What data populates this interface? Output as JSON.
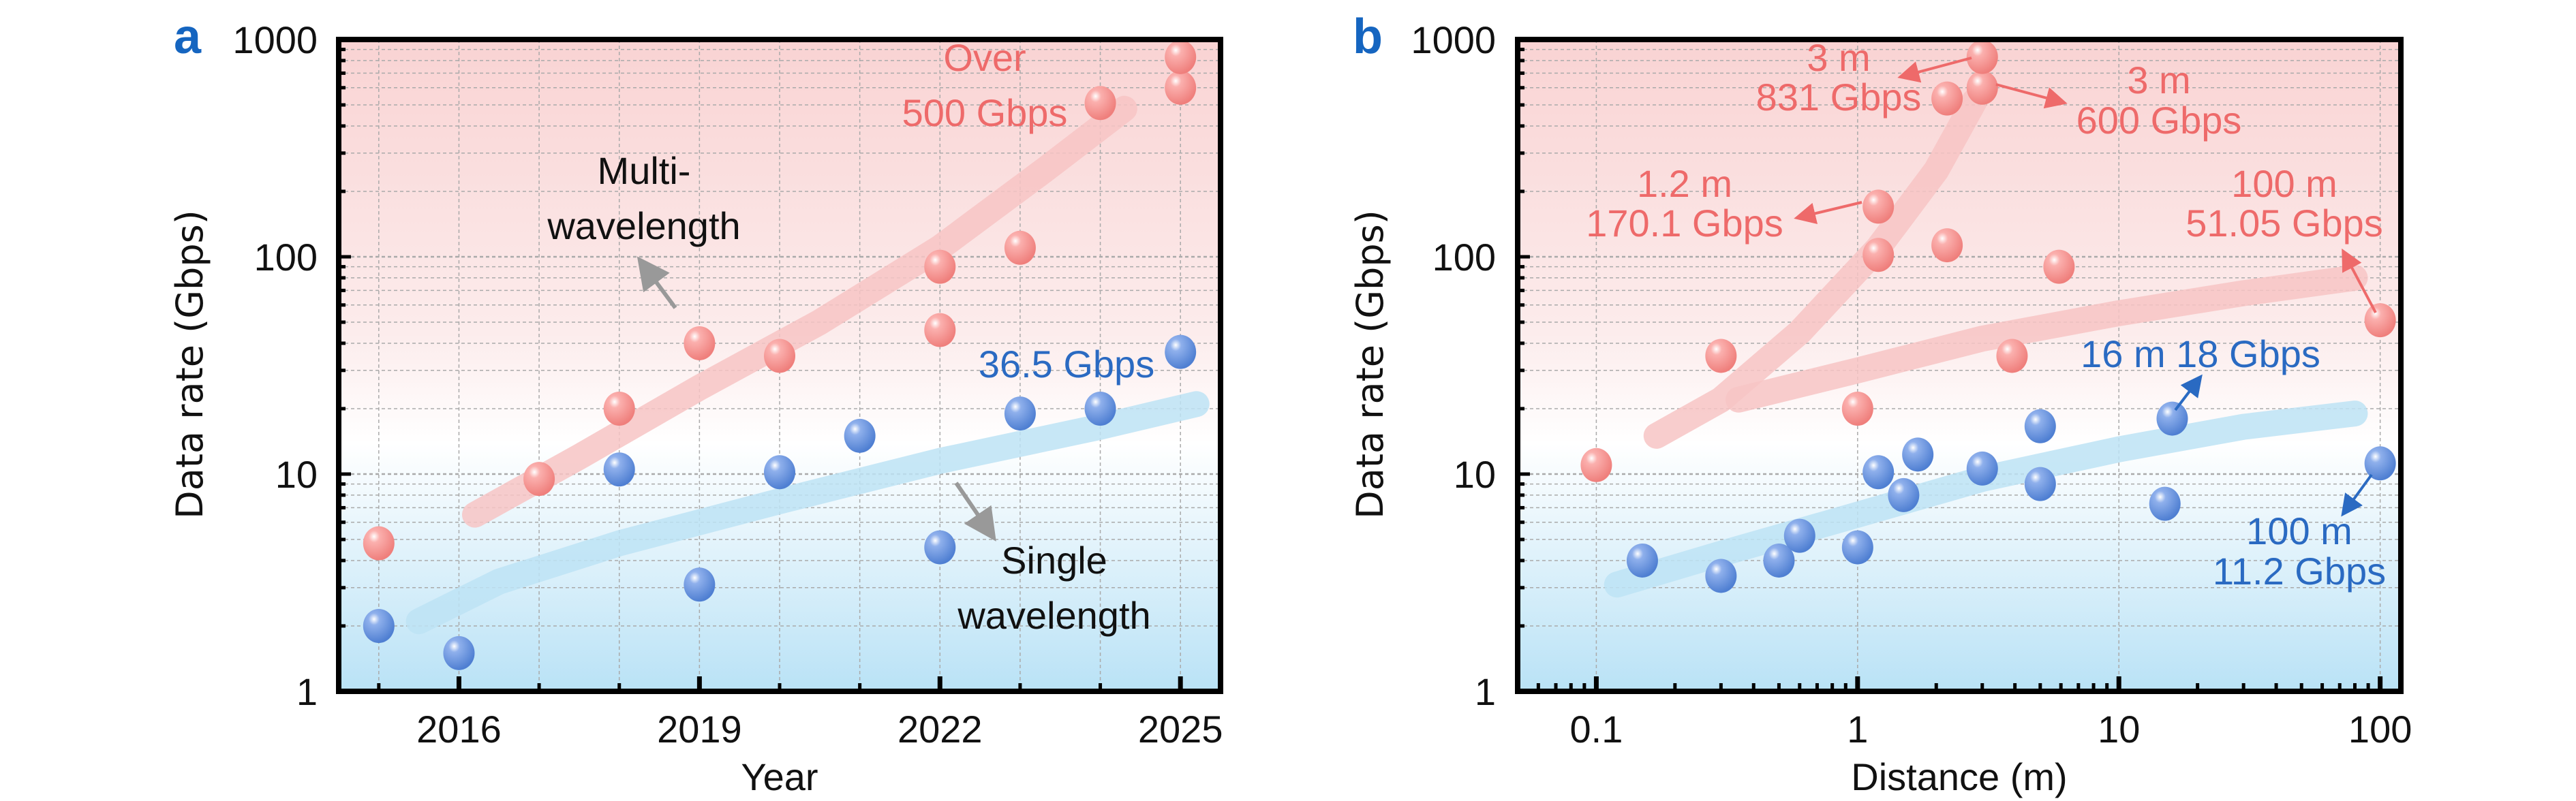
{
  "chart_data": [
    {
      "panel": "a",
      "type": "scatter",
      "xlabel": "Year",
      "ylabel": "Data rate (Gbps)",
      "xscale": "linear",
      "yscale": "log",
      "xlim": [
        2014.5,
        2025.5
      ],
      "ylim": [
        1,
        1000
      ],
      "xticks": [
        2016,
        2019,
        2022,
        2025
      ],
      "yticks": [
        1,
        10,
        100,
        1000
      ],
      "grid": true,
      "colors": {
        "multi": "#f08a8a",
        "single": "#5b8bd8",
        "multi_band": "#f7c4c4",
        "single_band": "#bde3f5"
      },
      "series": [
        {
          "key": "multi",
          "x": [
            2015,
            2017,
            2018,
            2019,
            2020,
            2022,
            2022,
            2023,
            2024,
            2025,
            2025
          ],
          "y": [
            4.8,
            9.5,
            20,
            40,
            35,
            90,
            46,
            110,
            510,
            600,
            830
          ]
        },
        {
          "key": "single",
          "x": [
            2015,
            2016,
            2018,
            2019,
            2020,
            2021,
            2022,
            2023,
            2024,
            2025
          ],
          "y": [
            2.0,
            1.5,
            10.5,
            3.1,
            10.2,
            15,
            4.6,
            19,
            20,
            36.5
          ]
        }
      ],
      "trends": [
        {
          "key": "multi",
          "x": [
            2016.2,
            2017.5,
            2019,
            2020.5,
            2022,
            2023.3,
            2024.3
          ],
          "y": [
            6.5,
            12,
            25,
            50,
            110,
            250,
            480
          ]
        },
        {
          "key": "single",
          "x": [
            2015.5,
            2016.5,
            2018,
            2020,
            2022,
            2024,
            2025.2
          ],
          "y": [
            2.1,
            3.2,
            4.8,
            7.5,
            11.5,
            16.5,
            21
          ]
        }
      ],
      "annotations": [
        {
          "lines": [
            "Over",
            "500 Gbps"
          ],
          "color": "multi"
        },
        {
          "lines": [
            "Multi-",
            "wavelength"
          ],
          "color": "text"
        },
        {
          "lines": [
            "36.5 Gbps"
          ],
          "color": "single"
        },
        {
          "lines": [
            "Single",
            "wavelength"
          ],
          "color": "text"
        }
      ]
    },
    {
      "panel": "b",
      "type": "scatter",
      "xlabel": "Distance (m)",
      "ylabel": "Data rate (Gbps)",
      "xscale": "log",
      "yscale": "log",
      "xlim": [
        0.05,
        120
      ],
      "ylim": [
        1,
        1000
      ],
      "xticks": [
        0.1,
        1,
        10,
        100
      ],
      "xticklabels": [
        "0.1",
        "1",
        "10",
        "100"
      ],
      "yticks": [
        1,
        10,
        100,
        1000
      ],
      "grid": true,
      "series": [
        {
          "key": "multi",
          "x": [
            0.1,
            0.3,
            1,
            1.2,
            1.2,
            2.2,
            2.2,
            3,
            3,
            3.9,
            5.9,
            100
          ],
          "y": [
            11,
            35,
            20,
            102,
            170.1,
            113,
            535,
            600,
            831,
            35,
            90,
            51.05
          ]
        },
        {
          "key": "single",
          "x": [
            0.15,
            0.3,
            0.5,
            0.6,
            1,
            1.2,
            1.5,
            1.7,
            3,
            5,
            5,
            15,
            16,
            100
          ],
          "y": [
            4.0,
            3.4,
            4.0,
            5.2,
            4.6,
            10.2,
            8.0,
            12.3,
            10.6,
            16.6,
            9.0,
            7.3,
            18,
            11.2
          ]
        }
      ],
      "trends": [
        {
          "key": "multi",
          "x": [
            0.17,
            0.3,
            0.6,
            1.2,
            2,
            2.8
          ],
          "y": [
            15,
            22,
            45,
            110,
            250,
            520
          ]
        },
        {
          "key": "multi",
          "x": [
            0.35,
            1,
            3,
            10,
            30,
            80
          ],
          "y": [
            22,
            30,
            42,
            55,
            68,
            80
          ]
        },
        {
          "key": "single",
          "x": [
            0.12,
            0.3,
            1,
            3,
            10,
            30,
            80
          ],
          "y": [
            3.1,
            4.3,
            6.5,
            9.5,
            13,
            16.5,
            19
          ]
        }
      ],
      "annotations": [
        {
          "lines": [
            "3 m",
            "831 Gbps"
          ],
          "color": "multi"
        },
        {
          "lines": [
            "3 m",
            "600 Gbps"
          ],
          "color": "multi"
        },
        {
          "lines": [
            "1.2 m",
            "170.1 Gbps"
          ],
          "color": "multi"
        },
        {
          "lines": [
            "100 m",
            "51.05 Gbps"
          ],
          "color": "multi"
        },
        {
          "lines": [
            "16 m 18 Gbps"
          ],
          "color": "single"
        },
        {
          "lines": [
            "100 m",
            "11.2 Gbps"
          ],
          "color": "single"
        }
      ]
    }
  ],
  "panel_labels": [
    "a",
    "b"
  ]
}
